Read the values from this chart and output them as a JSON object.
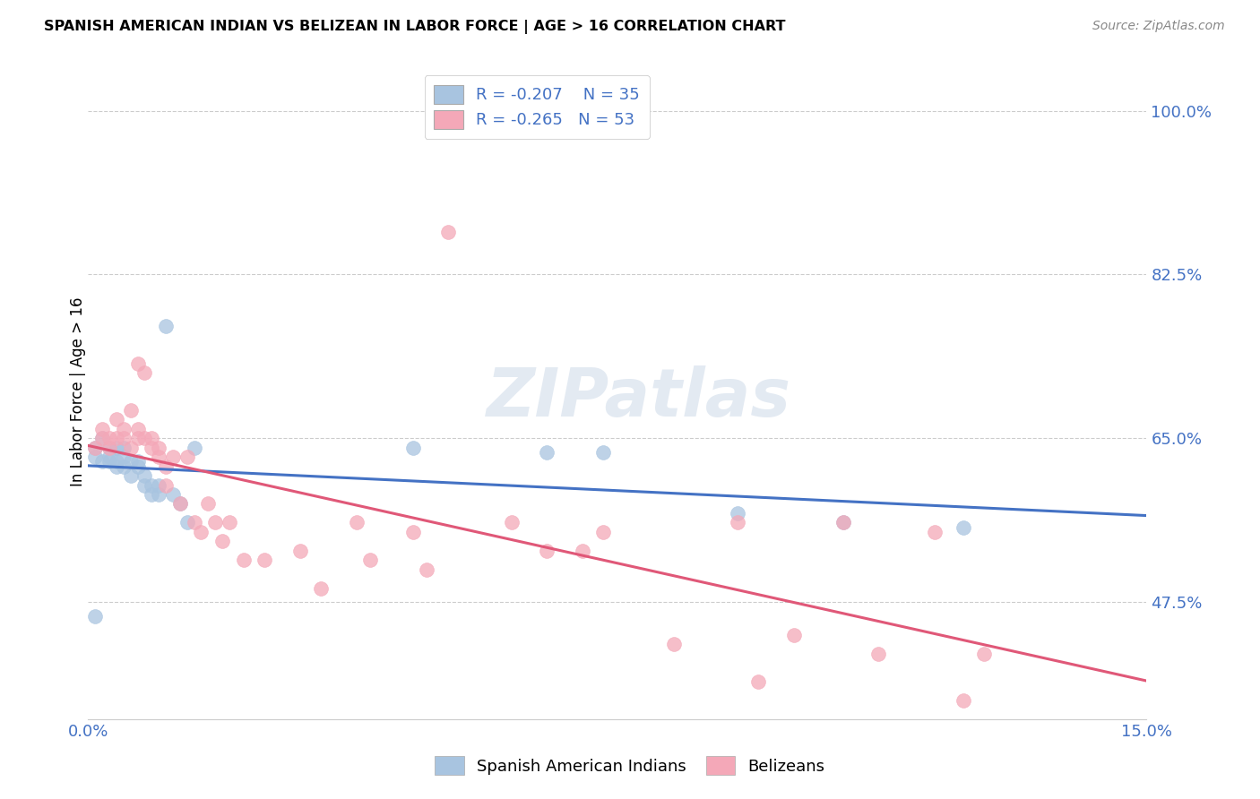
{
  "title": "SPANISH AMERICAN INDIAN VS BELIZEAN IN LABOR FORCE | AGE > 16 CORRELATION CHART",
  "source": "Source: ZipAtlas.com",
  "ylabel": "In Labor Force | Age > 16",
  "xlim": [
    0.0,
    0.15
  ],
  "ylim": [
    0.35,
    1.05
  ],
  "xtick_labels": [
    "0.0%",
    "15.0%"
  ],
  "xtick_positions": [
    0.0,
    0.15
  ],
  "ytick_labels": [
    "47.5%",
    "65.0%",
    "82.5%",
    "100.0%"
  ],
  "ytick_positions": [
    0.475,
    0.65,
    0.825,
    1.0
  ],
  "blue_R": "-0.207",
  "blue_N": "35",
  "pink_R": "-0.265",
  "pink_N": "53",
  "blue_color": "#a8c4e0",
  "pink_color": "#f4a8b8",
  "blue_line_color": "#4472c4",
  "pink_line_color": "#e05878",
  "watermark": "ZIPatlas",
  "blue_points_x": [
    0.001,
    0.001,
    0.002,
    0.002,
    0.003,
    0.003,
    0.003,
    0.004,
    0.004,
    0.004,
    0.005,
    0.005,
    0.005,
    0.006,
    0.006,
    0.007,
    0.007,
    0.008,
    0.008,
    0.009,
    0.009,
    0.01,
    0.01,
    0.011,
    0.012,
    0.013,
    0.014,
    0.015,
    0.046,
    0.065,
    0.073,
    0.092,
    0.107,
    0.124,
    0.001
  ],
  "blue_points_y": [
    0.64,
    0.63,
    0.65,
    0.625,
    0.64,
    0.63,
    0.625,
    0.64,
    0.625,
    0.62,
    0.64,
    0.63,
    0.62,
    0.625,
    0.61,
    0.625,
    0.62,
    0.61,
    0.6,
    0.6,
    0.59,
    0.6,
    0.59,
    0.77,
    0.59,
    0.58,
    0.56,
    0.64,
    0.64,
    0.635,
    0.635,
    0.57,
    0.56,
    0.555,
    0.46
  ],
  "pink_points_x": [
    0.001,
    0.002,
    0.002,
    0.003,
    0.003,
    0.004,
    0.004,
    0.005,
    0.005,
    0.006,
    0.006,
    0.007,
    0.007,
    0.007,
    0.008,
    0.008,
    0.009,
    0.009,
    0.01,
    0.01,
    0.011,
    0.011,
    0.012,
    0.013,
    0.014,
    0.015,
    0.016,
    0.017,
    0.018,
    0.019,
    0.02,
    0.022,
    0.025,
    0.03,
    0.033,
    0.038,
    0.04,
    0.046,
    0.048,
    0.051,
    0.06,
    0.065,
    0.07,
    0.073,
    0.083,
    0.092,
    0.095,
    0.1,
    0.107,
    0.112,
    0.12,
    0.124,
    0.127
  ],
  "pink_points_y": [
    0.64,
    0.65,
    0.66,
    0.65,
    0.64,
    0.67,
    0.65,
    0.66,
    0.65,
    0.64,
    0.68,
    0.66,
    0.65,
    0.73,
    0.65,
    0.72,
    0.65,
    0.64,
    0.64,
    0.63,
    0.62,
    0.6,
    0.63,
    0.58,
    0.63,
    0.56,
    0.55,
    0.58,
    0.56,
    0.54,
    0.56,
    0.52,
    0.52,
    0.53,
    0.49,
    0.56,
    0.52,
    0.55,
    0.51,
    0.87,
    0.56,
    0.53,
    0.53,
    0.55,
    0.43,
    0.56,
    0.39,
    0.44,
    0.56,
    0.42,
    0.55,
    0.37,
    0.42
  ]
}
